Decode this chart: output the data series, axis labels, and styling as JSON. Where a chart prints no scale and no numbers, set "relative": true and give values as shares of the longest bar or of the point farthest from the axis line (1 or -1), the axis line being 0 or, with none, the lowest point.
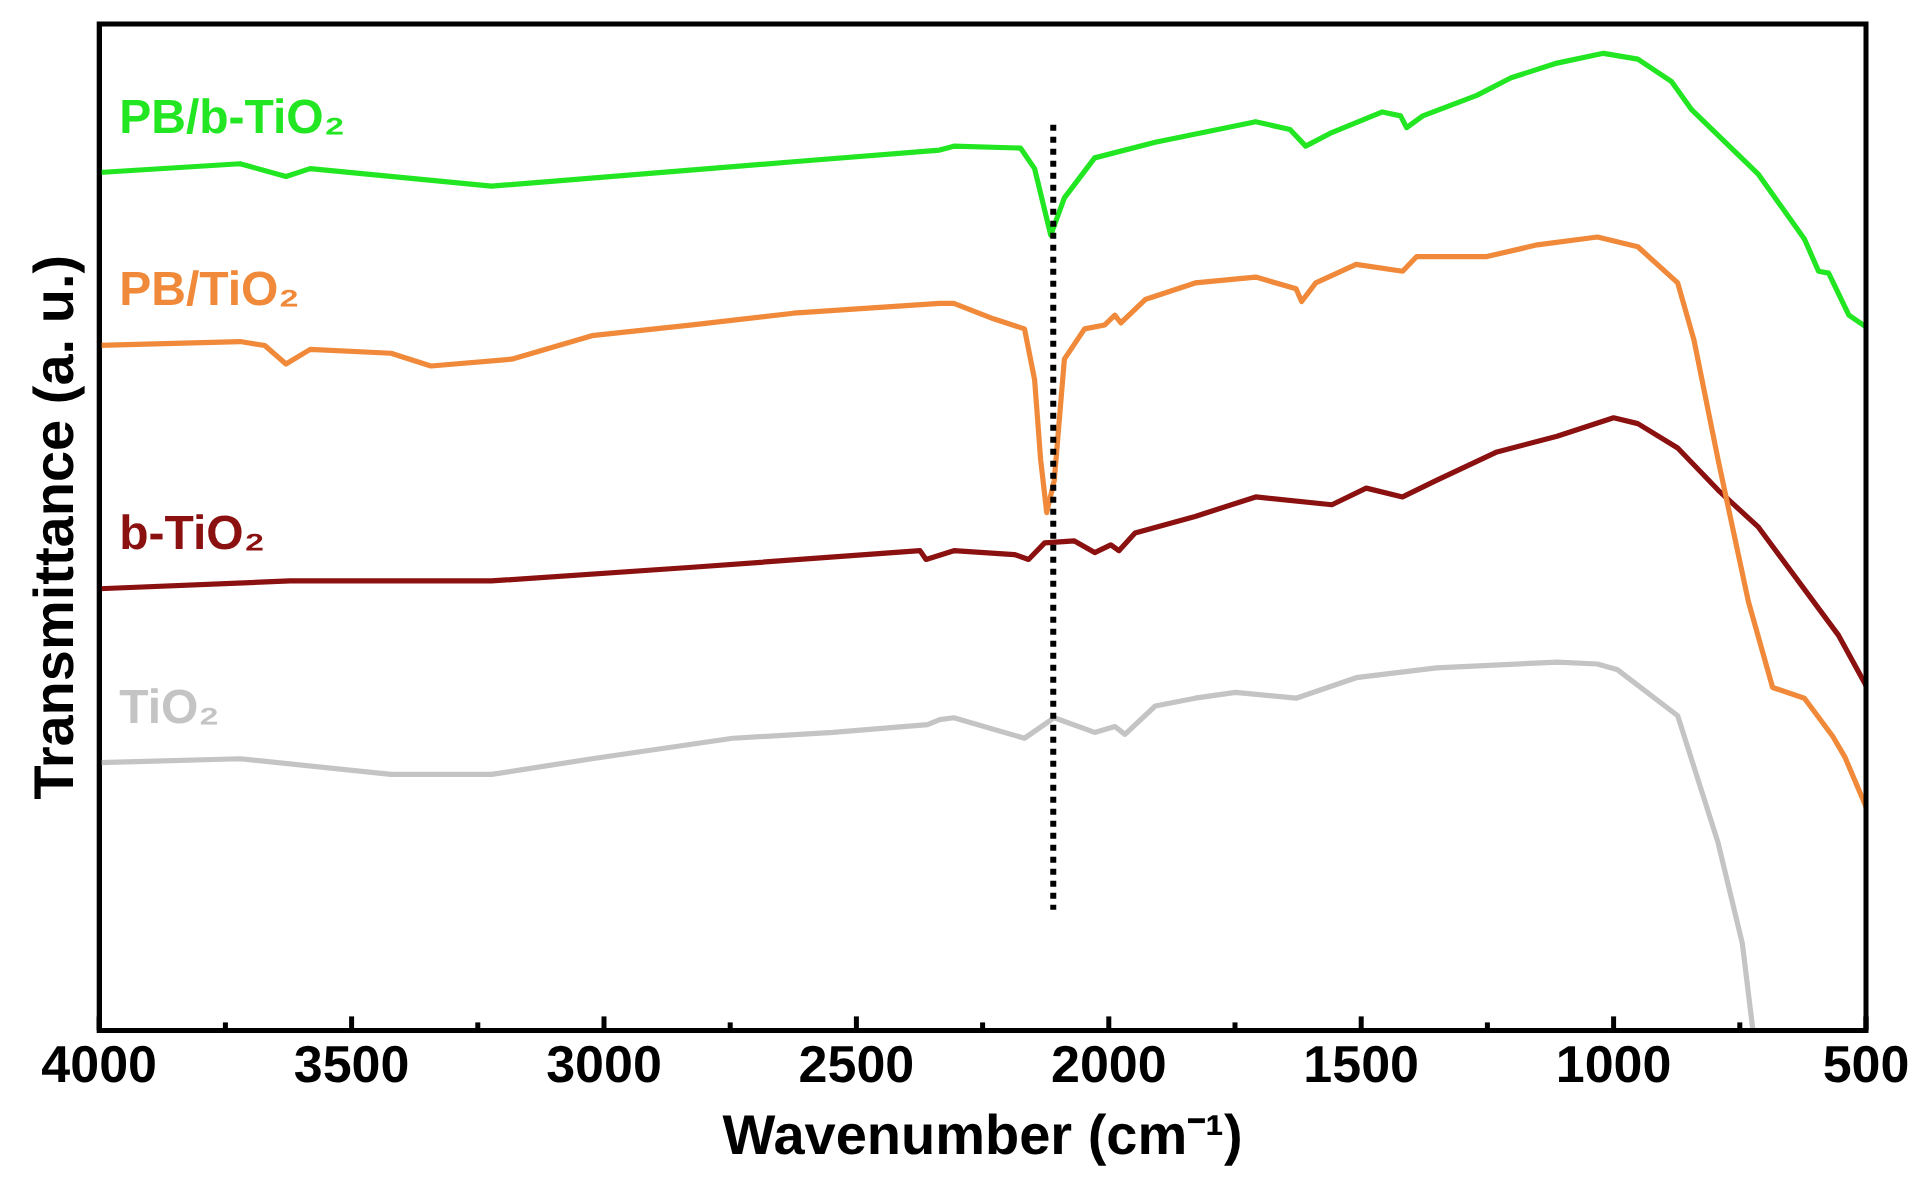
{
  "chart_data": {
    "type": "line",
    "xlabel": "Wavenumber (cm⁻¹)",
    "ylabel": "Transmittance (a. u.)",
    "relative": true,
    "xlim": [
      4000,
      500
    ],
    "xticks": [
      4000,
      {
        "value": 3750,
        "label": null
      },
      3500,
      {
        "value": 3250,
        "label": null
      },
      3000,
      {
        "value": 2750,
        "label": null
      },
      2500,
      {
        "value": 2250,
        "label": null
      },
      2000,
      {
        "value": 1750,
        "label": null
      },
      1500,
      {
        "value": 1250,
        "label": null
      },
      1000,
      {
        "value": 750,
        "label": null
      },
      500
    ],
    "grid": false,
    "legend": false,
    "marker": "none",
    "line_style": "solid",
    "ref_lines": [
      {
        "axis": "x",
        "value": 2110,
        "color": "#000000",
        "line_style": "dotted"
      }
    ],
    "series": [
      {
        "name": "PB/b-TiO₂",
        "color": "#22e622",
        "x": [
          4000,
          3721,
          3630,
          3582,
          3223,
          2625,
          2335,
          2307,
          2175,
          2147,
          2115,
          2088,
          2028,
          1908,
          1709,
          1641,
          1610,
          1562,
          1458,
          1422,
          1410,
          1378,
          1271,
          1203,
          1112,
          1020,
          952,
          885,
          845,
          713,
          622,
          594,
          574,
          534,
          500
        ],
        "values": [
          0.878,
          0.887,
          0.874,
          0.882,
          0.864,
          0.889,
          0.901,
          0.905,
          0.903,
          0.882,
          0.814,
          0.852,
          0.893,
          0.909,
          0.93,
          0.922,
          0.905,
          0.918,
          0.94,
          0.936,
          0.924,
          0.936,
          0.957,
          0.975,
          0.99,
          1.0,
          0.994,
          0.971,
          0.942,
          0.876,
          0.81,
          0.777,
          0.775,
          0.732,
          0.72
        ]
      },
      {
        "name": "PB/TiO₂",
        "color": "#f08a3a",
        "x": [
          4000,
          3721,
          3672,
          3630,
          3582,
          3422,
          3343,
          3183,
          3024,
          2825,
          2625,
          2335,
          2307,
          2227,
          2167,
          2147,
          2135,
          2123,
          2108,
          2088,
          2048,
          2008,
          1988,
          1976,
          1928,
          1829,
          1709,
          1629,
          1618,
          1590,
          1510,
          1418,
          1390,
          1251,
          1151,
          1032,
          952,
          873,
          841,
          793,
          733,
          685,
          622,
          566,
          542,
          500
        ],
        "values": [
          0.701,
          0.705,
          0.701,
          0.682,
          0.697,
          0.693,
          0.68,
          0.687,
          0.711,
          0.722,
          0.734,
          0.744,
          0.744,
          0.728,
          0.718,
          0.666,
          0.584,
          0.53,
          0.563,
          0.687,
          0.718,
          0.722,
          0.732,
          0.724,
          0.748,
          0.765,
          0.771,
          0.759,
          0.746,
          0.765,
          0.784,
          0.777,
          0.792,
          0.792,
          0.804,
          0.812,
          0.802,
          0.765,
          0.707,
          0.584,
          0.439,
          0.351,
          0.34,
          0.301,
          0.28,
          0.229
        ]
      },
      {
        "name": "b-TiO₂",
        "color": "#8b1010",
        "x": [
          4000,
          3622,
          3223,
          2825,
          2374,
          2362,
          2307,
          2187,
          2159,
          2127,
          2068,
          2028,
          1996,
          1980,
          1948,
          1829,
          1709,
          1558,
          1490,
          1418,
          1351,
          1231,
          1112,
          1000,
          952,
          873,
          793,
          713,
          554,
          500
        ],
        "values": [
          0.452,
          0.46,
          0.46,
          0.474,
          0.491,
          0.482,
          0.491,
          0.487,
          0.482,
          0.499,
          0.501,
          0.489,
          0.497,
          0.491,
          0.509,
          0.526,
          0.546,
          0.538,
          0.555,
          0.546,
          0.563,
          0.592,
          0.608,
          0.627,
          0.621,
          0.596,
          0.553,
          0.515,
          0.404,
          0.353
        ]
      },
      {
        "name": "TiO₂",
        "color": "#c4c4c4",
        "x": [
          4000,
          3721,
          3422,
          3223,
          3024,
          2745,
          2546,
          2359,
          2335,
          2307,
          2167,
          2108,
          2028,
          1988,
          1968,
          1908,
          1829,
          1749,
          1629,
          1510,
          1351,
          1112,
          1032,
          992,
          873,
          793,
          745,
          724
        ],
        "values": [
          0.274,
          0.278,
          0.262,
          0.262,
          0.278,
          0.299,
          0.305,
          0.313,
          0.318,
          0.32,
          0.299,
          0.32,
          0.305,
          0.311,
          0.303,
          0.332,
          0.34,
          0.346,
          0.34,
          0.361,
          0.371,
          0.377,
          0.375,
          0.369,
          0.322,
          0.192,
          0.089,
          0
        ]
      }
    ]
  }
}
